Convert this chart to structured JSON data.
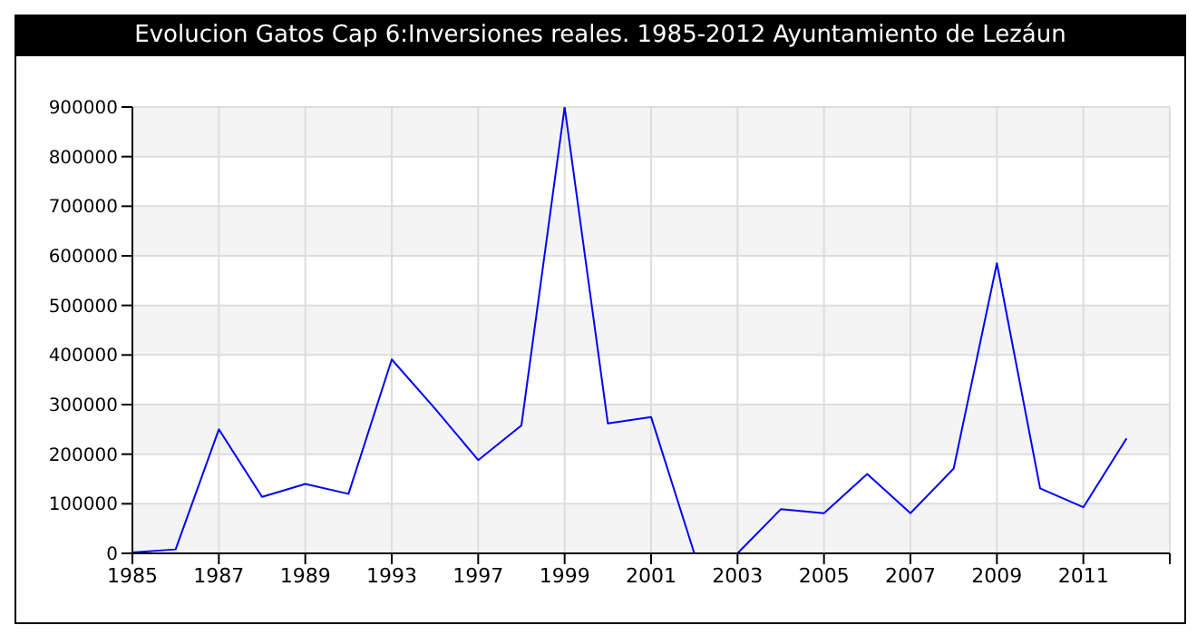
{
  "chart_data": {
    "type": "line",
    "title": "Evolucion Gatos Cap 6:Inversiones reales. 1985-2012 Ayuntamiento de Lezáun",
    "categories": [
      "1985",
      null,
      "1987",
      null,
      "1989",
      null,
      "1993",
      null,
      "1997",
      null,
      "1999",
      null,
      "2001",
      null,
      "2003",
      null,
      "2005",
      null,
      "2007",
      null,
      "2009",
      null,
      "2011",
      null
    ],
    "series": [
      {
        "color": "#0000ff",
        "values": [
          2000,
          8000,
          250000,
          114000,
          140000,
          120000,
          391000,
          292000,
          188000,
          258000,
          900000,
          262000,
          275000,
          0,
          0,
          89000,
          81000,
          160000,
          81000,
          171000,
          585000,
          131000,
          93000,
          232000
        ]
      }
    ],
    "ylim": [
      0,
      900000
    ],
    "yticks": [
      0,
      100000,
      200000,
      300000,
      400000,
      500000,
      600000,
      700000,
      800000,
      900000
    ],
    "grid": true,
    "marker": "none",
    "line_style": "solid"
  }
}
